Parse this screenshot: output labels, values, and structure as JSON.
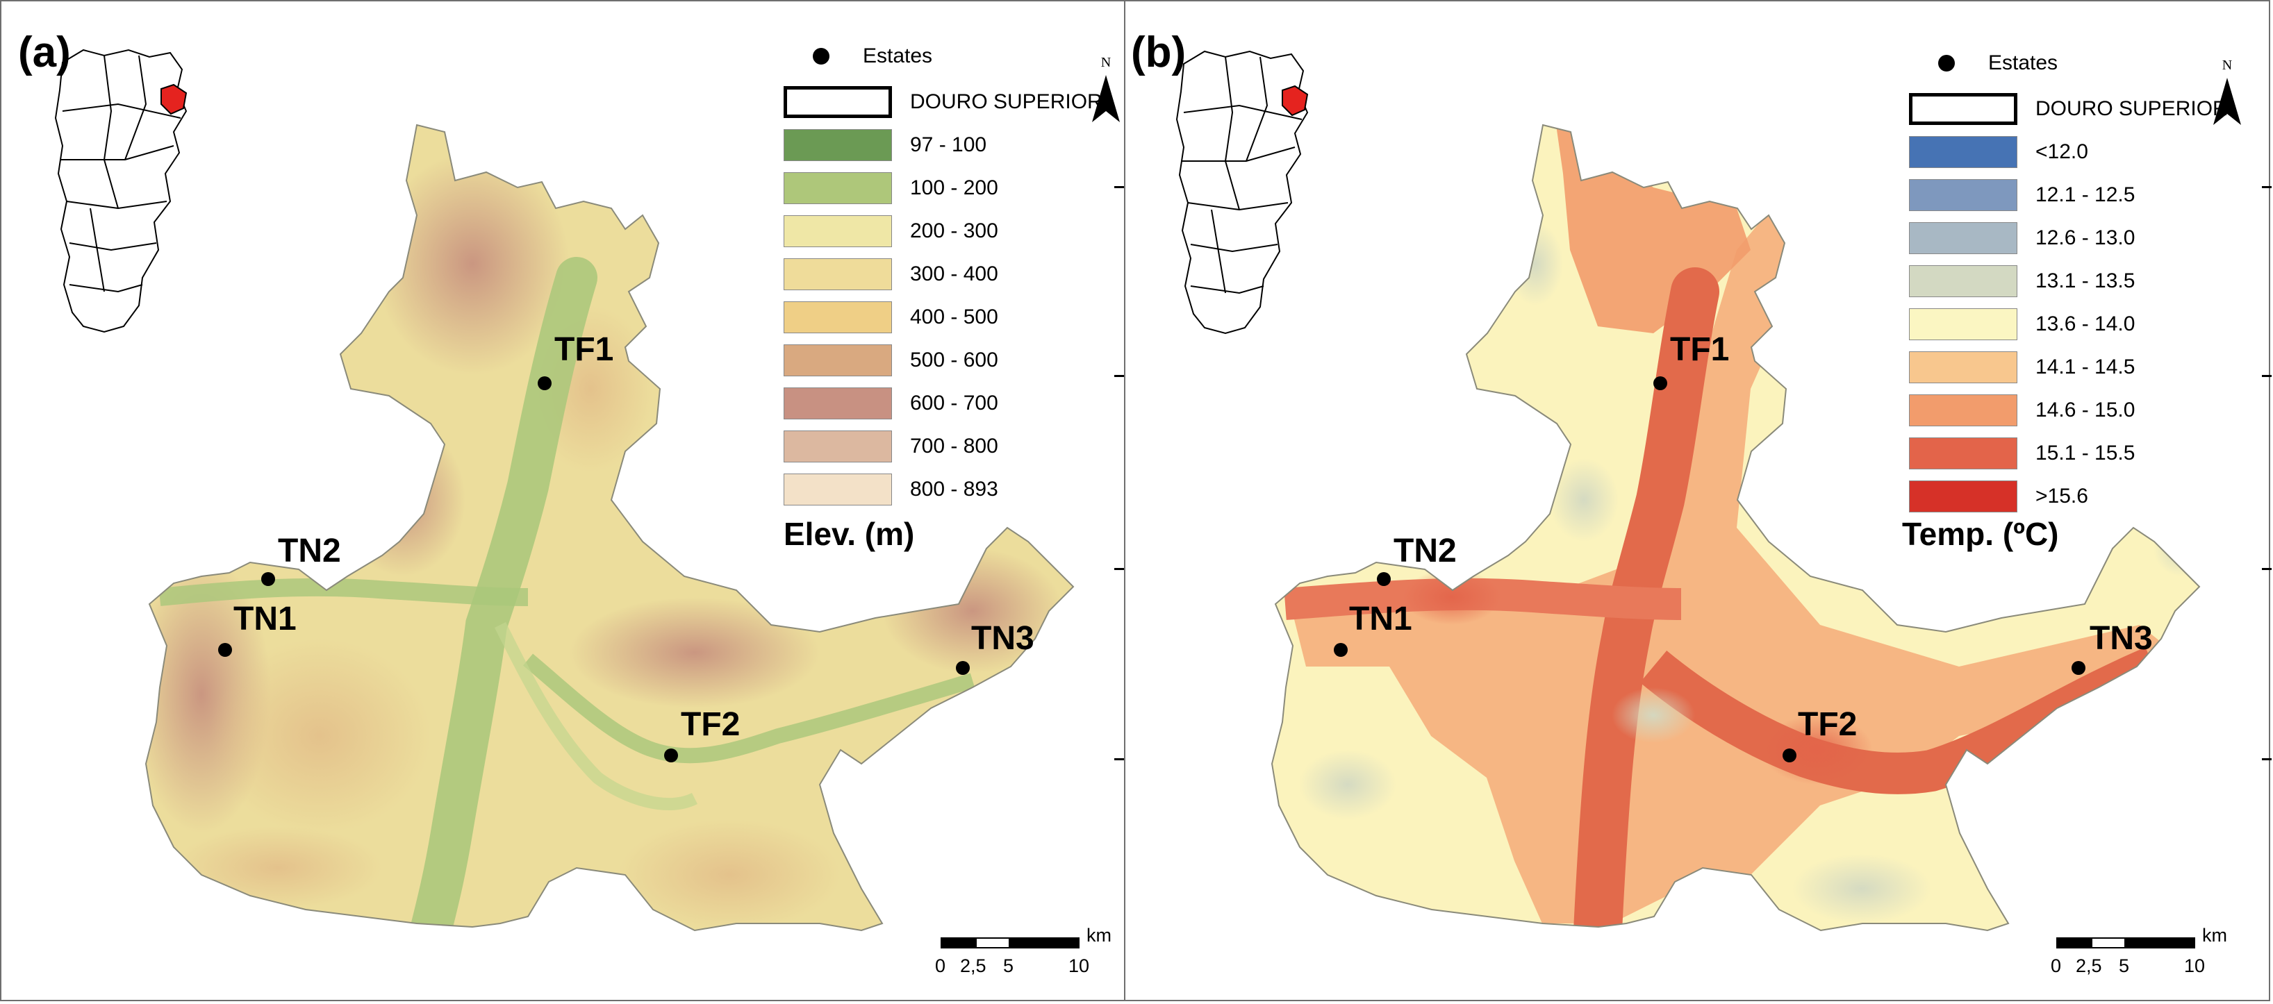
{
  "panel_a": {
    "label": "(a)",
    "legend": {
      "estates_label": "Estates",
      "region_label": "DOURO SUPERIOR",
      "classes": [
        {
          "label": "97 - 100",
          "color": "#6b9a54"
        },
        {
          "label": "100 - 200",
          "color": "#aec77a"
        },
        {
          "label": "200 - 300",
          "color": "#efe7a6"
        },
        {
          "label": "300 - 400",
          "color": "#efdc9a"
        },
        {
          "label": "400 - 500",
          "color": "#efcf86"
        },
        {
          "label": "500 - 600",
          "color": "#d9a980"
        },
        {
          "label": "600 - 700",
          "color": "#c89182"
        },
        {
          "label": "700 - 800",
          "color": "#dcb8a0"
        },
        {
          "label": "800 - 893",
          "color": "#f3e1c8"
        }
      ],
      "title": "Elev. (m)"
    },
    "north": "N",
    "estates": [
      "TF1",
      "TN2",
      "TN1",
      "TN3",
      "TF2"
    ],
    "scale": {
      "unit": "km",
      "ticks": [
        "0",
        "2,5",
        "5",
        "10"
      ]
    }
  },
  "panel_b": {
    "label": "(b)",
    "legend": {
      "estates_label": "Estates",
      "region_label": "DOURO SUPERIOR",
      "classes": [
        {
          "label": "<12.0",
          "color": "#4673b4"
        },
        {
          "label": "12.1 - 12.5",
          "color": "#7e98be"
        },
        {
          "label": "12.6 - 13.0",
          "color": "#a8b8c4"
        },
        {
          "label": "13.1 - 13.5",
          "color": "#d3d9c2"
        },
        {
          "label": "13.6 - 14.0",
          "color": "#fbf6c2"
        },
        {
          "label": "14.1 - 14.5",
          "color": "#f8c78e"
        },
        {
          "label": "14.6 - 15.0",
          "color": "#f29c6c"
        },
        {
          "label": "15.1 - 15.5",
          "color": "#e3644a"
        },
        {
          "label": ">15.6",
          "color": "#d63128"
        }
      ],
      "title": "Temp. (ºC)"
    },
    "north": "N",
    "estates": [
      "TF1",
      "TN2",
      "TN1",
      "TN3",
      "TF2"
    ],
    "scale": {
      "unit": "km",
      "ticks": [
        "0",
        "2,5",
        "5",
        "10"
      ]
    }
  },
  "colors": {
    "elev_base": "#ecdd9c",
    "elev_valley": "#a9c77a",
    "elev_high": "#c89182",
    "temp_base": "#fbf3bd",
    "temp_warm": "#f6b27f",
    "temp_hot": "#e26a4b",
    "temp_cool": "#c9d1bf",
    "inset_highlight": "#e5231f"
  }
}
